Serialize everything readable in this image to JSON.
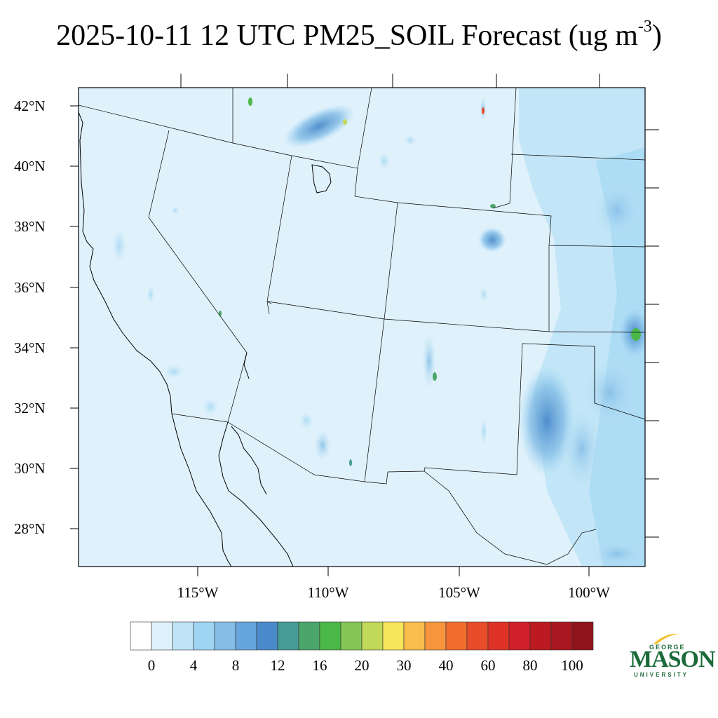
{
  "title": {
    "main": "2025-10-11 12 UTC PM25_SOIL Forecast (ug m",
    "superscript": "-3",
    "close": ")"
  },
  "map": {
    "lat_labels": [
      "42°N",
      "40°N",
      "38°N",
      "36°N",
      "34°N",
      "32°N",
      "30°N",
      "28°N"
    ],
    "lon_labels": [
      "115°W",
      "110°W",
      "105°W",
      "100°W"
    ],
    "background_color": "#dff1fb",
    "border_color": "#000000"
  },
  "colorbar": {
    "colors": [
      "#ffffff",
      "#dff1fb",
      "#bfe4f6",
      "#9fd5f3",
      "#84bde6",
      "#66a5dc",
      "#4a8acb",
      "#469b97",
      "#4aa66a",
      "#4bb84a",
      "#86c655",
      "#c1d858",
      "#f7e55c",
      "#f8bd4a",
      "#f6953c",
      "#f16d2c",
      "#e84c2b",
      "#df3328",
      "#d02029",
      "#bc1a22",
      "#a91820",
      "#8f141b"
    ],
    "labels": [
      "0",
      "4",
      "8",
      "12",
      "16",
      "20",
      "30",
      "40",
      "60",
      "80",
      "100"
    ]
  },
  "logo": {
    "george": "GEORGE",
    "mason": "MASON",
    "university": "UNIVERSITY",
    "brand_color": "#1b6b3a",
    "accent_color": "#f2c12e"
  }
}
